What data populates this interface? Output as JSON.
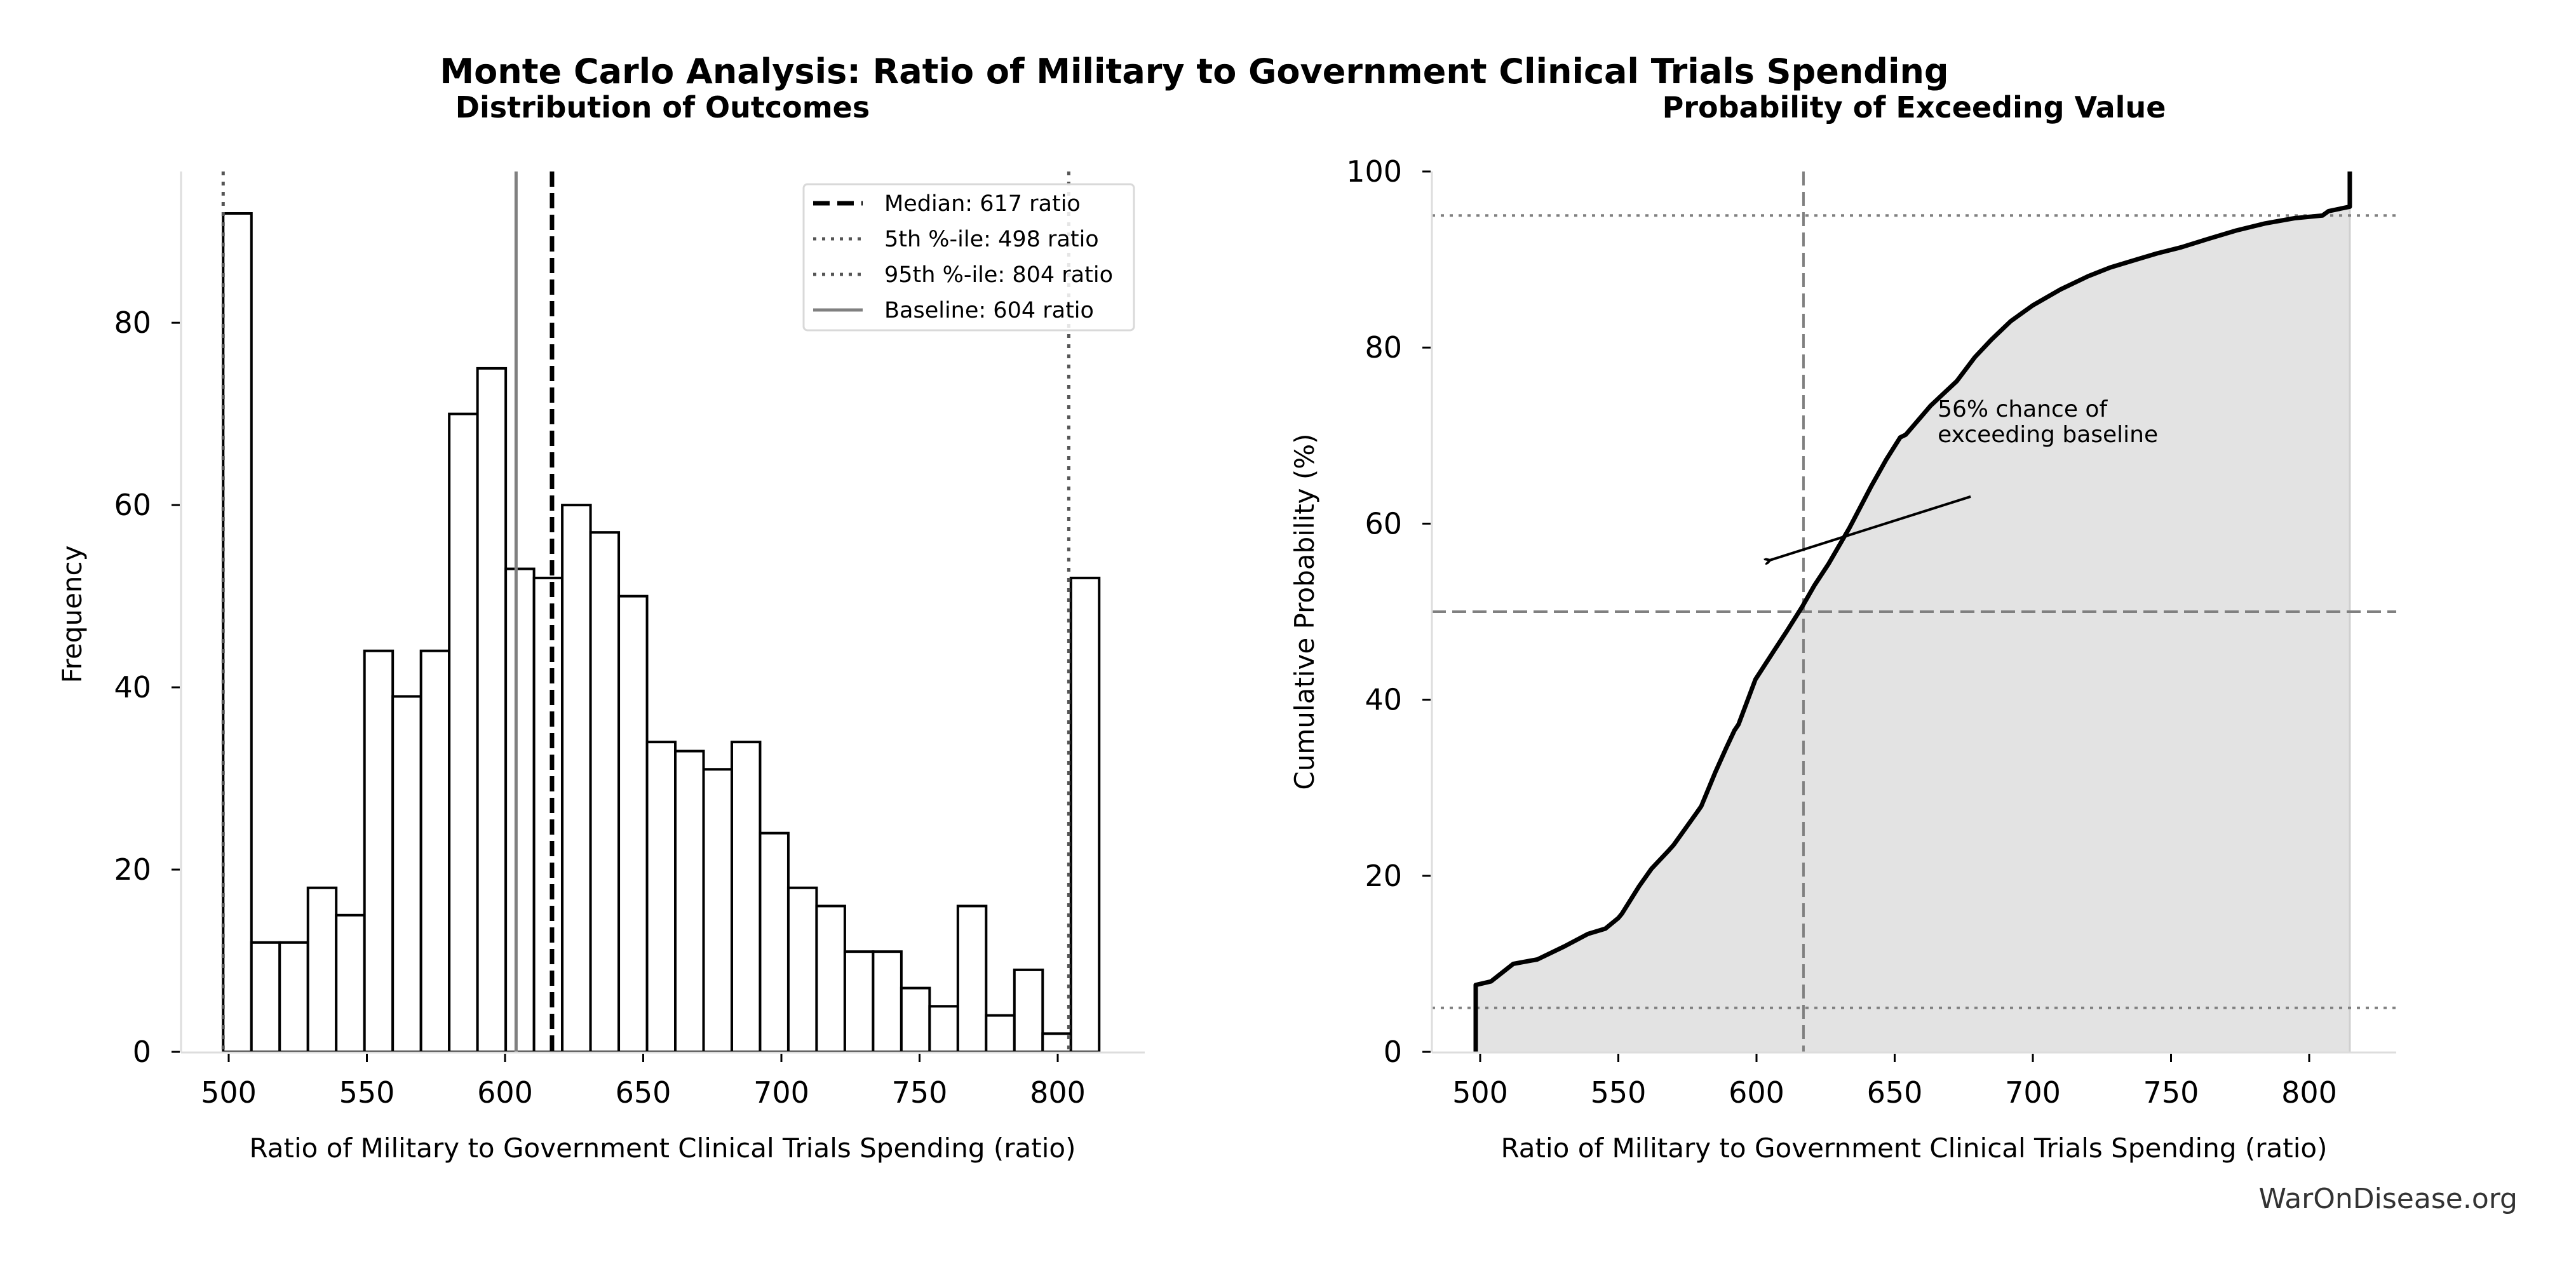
{
  "figure": {
    "suptitle": "Monte Carlo Analysis: Ratio of Military to Government Clinical Trials Spending",
    "watermark": "WarOnDisease.org"
  },
  "chart_data": [
    {
      "type": "bar",
      "subtype": "histogram",
      "title": "Distribution of Outcomes",
      "xlabel": "Ratio of Military to Government Clinical Trials Spending (ratio)",
      "ylabel": "Frequency",
      "bin_range": [
        498,
        815
      ],
      "counts": [
        92,
        12,
        12,
        18,
        15,
        44,
        39,
        44,
        70,
        75,
        53,
        52,
        60,
        57,
        50,
        34,
        33,
        31,
        34,
        24,
        18,
        16,
        11,
        11,
        7,
        5,
        16,
        4,
        9,
        2,
        52
      ],
      "xlim": [
        482,
        830
      ],
      "ylim": [
        0,
        96.6
      ],
      "xticks": [
        500,
        550,
        600,
        650,
        700,
        750,
        800
      ],
      "xtick_labels": [
        "500",
        "550",
        "600",
        "650",
        "700",
        "750",
        "800"
      ],
      "yticks": [
        0,
        20,
        40,
        60,
        80
      ],
      "ytick_labels": [
        "0",
        "20",
        "40",
        "60",
        "80"
      ],
      "bar_fill": "#ffffff",
      "bar_edge": "#000000",
      "reference_lines": [
        {
          "key": "median",
          "value": 617,
          "style": "dashed",
          "color": "#000000",
          "label": "Median: 617 ratio"
        },
        {
          "key": "p5",
          "value": 498,
          "style": "dotted",
          "color": "#555555",
          "label": "5th %-ile: 498 ratio"
        },
        {
          "key": "p95",
          "value": 804,
          "style": "dotted",
          "color": "#555555",
          "label": "95th %-ile: 804 ratio"
        },
        {
          "key": "baseline",
          "value": 604,
          "style": "solid",
          "color": "#808080",
          "label": "Baseline: 604 ratio"
        }
      ],
      "legend_position": "upper-right",
      "grid": false
    },
    {
      "type": "area",
      "subtype": "cumulative-step",
      "title": "Probability of Exceeding Value",
      "xlabel": "Ratio of Military to Government Clinical Trials Spending (ratio)",
      "ylabel": "Cumulative Probability (%)",
      "xlim": [
        482,
        830
      ],
      "ylim": [
        0,
        100
      ],
      "xticks": [
        500,
        550,
        600,
        650,
        700,
        750,
        800
      ],
      "xtick_labels": [
        "500",
        "550",
        "600",
        "650",
        "700",
        "750",
        "800"
      ],
      "yticks": [
        0,
        20,
        40,
        60,
        80,
        100
      ],
      "ytick_labels": [
        "0",
        "20",
        "40",
        "60",
        "80",
        "100"
      ],
      "fill_color": "#e3e3e3",
      "line_color": "#000000",
      "points": [
        [
          498.4,
          0
        ],
        [
          498.4,
          7.6
        ],
        [
          503.9,
          8.0
        ],
        [
          512,
          10.0
        ],
        [
          520.7,
          10.5
        ],
        [
          530.6,
          12.0
        ],
        [
          539,
          13.4
        ],
        [
          545.3,
          14.0
        ],
        [
          550,
          15.2
        ],
        [
          551.3,
          15.7
        ],
        [
          557.5,
          18.8
        ],
        [
          562,
          20.8
        ],
        [
          568.3,
          22.9
        ],
        [
          570,
          23.5
        ],
        [
          578.9,
          27.4
        ],
        [
          580,
          27.9
        ],
        [
          585,
          31.7
        ],
        [
          589,
          34.5
        ],
        [
          592,
          36.5
        ],
        [
          593.5,
          37.2
        ],
        [
          599.6,
          42.3
        ],
        [
          605.8,
          45.3
        ],
        [
          611,
          47.8
        ],
        [
          616.6,
          50.6
        ],
        [
          621,
          53.0
        ],
        [
          626,
          55.4
        ],
        [
          633.6,
          59.5
        ],
        [
          641.6,
          64.3
        ],
        [
          647,
          67.3
        ],
        [
          652,
          69.8
        ],
        [
          654,
          70.1
        ],
        [
          663,
          73.4
        ],
        [
          672.5,
          76.2
        ],
        [
          679,
          78.9
        ],
        [
          685,
          80.9
        ],
        [
          692,
          83.0
        ],
        [
          700,
          84.8
        ],
        [
          710,
          86.6
        ],
        [
          720,
          88.1
        ],
        [
          728,
          89.1
        ],
        [
          737.5,
          90.0
        ],
        [
          745,
          90.7
        ],
        [
          753.8,
          91.4
        ],
        [
          763,
          92.3
        ],
        [
          773.6,
          93.3
        ],
        [
          784,
          94.1
        ],
        [
          794.7,
          94.7
        ],
        [
          804.8,
          95.0
        ],
        [
          807,
          95.5
        ],
        [
          814.7,
          96.0
        ],
        [
          814.7,
          100
        ]
      ],
      "reference_lines": [
        {
          "key": "median-v",
          "orientation": "vertical",
          "value": 617,
          "style": "dashed",
          "color": "#808080"
        },
        {
          "key": "p50-h",
          "orientation": "horizontal",
          "value": 50,
          "style": "dashed",
          "color": "#808080"
        },
        {
          "key": "p5-h",
          "orientation": "horizontal",
          "value": 5,
          "style": "dotted",
          "color": "#808080"
        },
        {
          "key": "p95-h",
          "orientation": "horizontal",
          "value": 95,
          "style": "dotted",
          "color": "#808080"
        }
      ],
      "annotation": {
        "lines": [
          "56% chance of",
          "exceeding baseline"
        ],
        "arrow_to": [
          604,
          56
        ],
        "text_at": [
          666,
          70
        ]
      },
      "grid": false
    }
  ]
}
